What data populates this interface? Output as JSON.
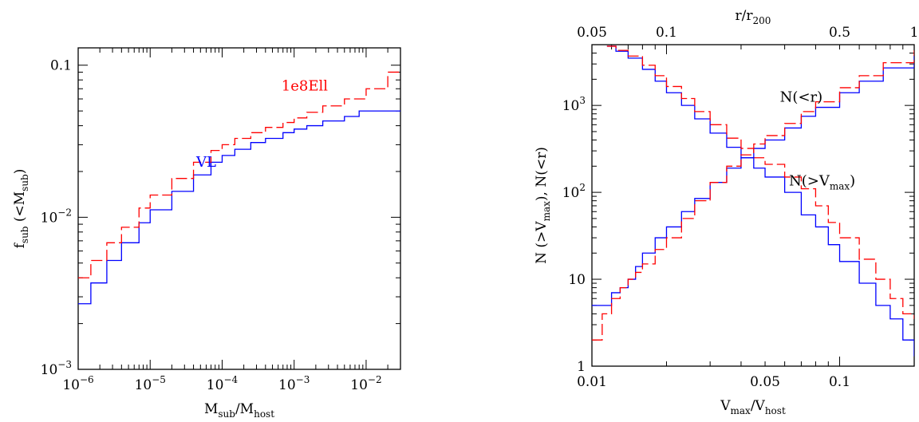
{
  "colors": {
    "vl": "#0000ff",
    "ell": "#ff0000",
    "frame": "#000000"
  },
  "chart_data": [
    {
      "type": "line",
      "xscale": "log",
      "yscale": "log",
      "xlim": [
        1e-06,
        0.03
      ],
      "ylim": [
        0.001,
        0.13
      ],
      "xlabel": {
        "main": "M",
        "sub1": "sub",
        "mid": "/M",
        "sub2": "host"
      },
      "ylabel": {
        "main": "f",
        "sub1": "sub",
        "mid": " (<M",
        "sub2": "sub",
        "end": ")"
      },
      "xticks": [
        {
          "value": 1e-06,
          "base": "10",
          "exp": "−6"
        },
        {
          "value": 1e-05,
          "base": "10",
          "exp": "−5"
        },
        {
          "value": 0.0001,
          "base": "10",
          "exp": "−4"
        },
        {
          "value": 0.001,
          "base": "10",
          "exp": "−3"
        },
        {
          "value": 0.01,
          "base": "10",
          "exp": "−2"
        }
      ],
      "yticks": [
        {
          "value": 0.001,
          "base": "10",
          "exp": "−3"
        },
        {
          "value": 0.01,
          "base": "10",
          "exp": "−2"
        },
        {
          "value": 0.1,
          "text": "0.1"
        }
      ],
      "series": [
        {
          "name": "VL",
          "style": "solid",
          "color": "#0000ff",
          "x": [
            1e-06,
            1.5e-06,
            2.5e-06,
            4e-06,
            7e-06,
            1e-05,
            2e-05,
            4e-05,
            7e-05,
            0.0001,
            0.00015,
            0.00025,
            0.0004,
            0.0007,
            0.001,
            0.0015,
            0.0025,
            0.005,
            0.008,
            0.03
          ],
          "y": [
            0.0027,
            0.0037,
            0.0052,
            0.0068,
            0.0092,
            0.0112,
            0.0148,
            0.019,
            0.023,
            0.0255,
            0.028,
            0.031,
            0.033,
            0.036,
            0.038,
            0.04,
            0.043,
            0.046,
            0.05,
            0.05
          ]
        },
        {
          "name": "1e8Ell",
          "style": "dashed",
          "color": "#ff0000",
          "x": [
            1e-06,
            1.5e-06,
            2.5e-06,
            4e-06,
            7e-06,
            1e-05,
            2e-05,
            4e-05,
            7e-05,
            0.0001,
            0.00015,
            0.00025,
            0.0004,
            0.0007,
            0.001,
            0.0015,
            0.0025,
            0.005,
            0.01,
            0.02,
            0.03
          ],
          "y": [
            0.004,
            0.0052,
            0.0068,
            0.0086,
            0.0115,
            0.014,
            0.018,
            0.023,
            0.0275,
            0.03,
            0.033,
            0.036,
            0.039,
            0.042,
            0.045,
            0.049,
            0.054,
            0.06,
            0.07,
            0.09,
            0.093
          ]
        }
      ],
      "annotations": [
        {
          "text": "1e8Ell",
          "x": 0.0014,
          "y": 0.068,
          "color": "#ff0000"
        },
        {
          "text": "VL",
          "x": 6e-05,
          "y": 0.0215,
          "color": "#0000ff"
        }
      ]
    },
    {
      "type": "line",
      "xscale": "log",
      "yscale": "log",
      "xlim": [
        0.01,
        0.2
      ],
      "ylim": [
        1,
        5000
      ],
      "top_xlim": [
        0.05,
        1
      ],
      "xlabel": {
        "main": "V",
        "sub1": "max",
        "mid": "/V",
        "sub2": "host"
      },
      "top_xlabel": {
        "main": "r/r",
        "sub1": "200"
      },
      "ylabel": {
        "a": "N (>V",
        "sub1": "max",
        "b": "), N(<r)"
      },
      "xticks": [
        {
          "value": 0.01,
          "text": "0.01"
        },
        {
          "value": 0.05,
          "text": "0.05"
        },
        {
          "value": 0.1,
          "text": "0.1"
        }
      ],
      "top_xticks": [
        {
          "value": 0.05,
          "text": "0.05"
        },
        {
          "value": 0.1,
          "text": "0.1"
        },
        {
          "value": 0.5,
          "text": "0.5"
        },
        {
          "value": 1,
          "text": "1"
        }
      ],
      "yticks": [
        {
          "value": 1,
          "text": "1"
        },
        {
          "value": 10,
          "text": "10"
        },
        {
          "value": 100,
          "base": "10",
          "exp": "2"
        },
        {
          "value": 1000,
          "base": "10",
          "exp": "3"
        }
      ],
      "series": [
        {
          "name": "N(>Vmax)",
          "style": "solid",
          "color": "#0000ff",
          "x": [
            0.0115,
            0.0125,
            0.014,
            0.016,
            0.018,
            0.02,
            0.023,
            0.026,
            0.03,
            0.035,
            0.04,
            0.045,
            0.05,
            0.06,
            0.07,
            0.08,
            0.09,
            0.1,
            0.12,
            0.14,
            0.16,
            0.18,
            0.2
          ],
          "y": [
            4800,
            4200,
            3500,
            2600,
            1900,
            1400,
            1000,
            700,
            480,
            330,
            250,
            190,
            150,
            100,
            55,
            40,
            25,
            16,
            9,
            5,
            3.5,
            2,
            1.3
          ]
        },
        {
          "name": "N(>Vmax)",
          "style": "dashed",
          "color": "#ff0000",
          "x": [
            0.0115,
            0.0125,
            0.014,
            0.016,
            0.018,
            0.02,
            0.023,
            0.026,
            0.03,
            0.035,
            0.04,
            0.045,
            0.05,
            0.06,
            0.07,
            0.08,
            0.09,
            0.1,
            0.12,
            0.14,
            0.16,
            0.18,
            0.2
          ],
          "y": [
            4800,
            4300,
            3700,
            2900,
            2200,
            1650,
            1200,
            850,
            600,
            420,
            320,
            250,
            210,
            150,
            110,
            70,
            45,
            30,
            17,
            10,
            6,
            4,
            3.5
          ]
        },
        {
          "name": "N(<r)",
          "style": "solid",
          "color": "#0000ff",
          "x": [
            0.01,
            0.011,
            0.012,
            0.013,
            0.014,
            0.015,
            0.016,
            0.018,
            0.02,
            0.023,
            0.026,
            0.03,
            0.035,
            0.04,
            0.045,
            0.05,
            0.06,
            0.07,
            0.08,
            0.1,
            0.12,
            0.15,
            0.2
          ],
          "y": [
            5,
            5,
            7,
            8,
            10,
            14,
            20,
            30,
            40,
            60,
            85,
            130,
            190,
            250,
            320,
            400,
            550,
            750,
            950,
            1400,
            1900,
            2700,
            3800
          ]
        },
        {
          "name": "N(<r)",
          "style": "dashed",
          "color": "#ff0000",
          "x": [
            0.01,
            0.011,
            0.012,
            0.013,
            0.014,
            0.015,
            0.016,
            0.018,
            0.02,
            0.023,
            0.026,
            0.03,
            0.035,
            0.04,
            0.045,
            0.05,
            0.06,
            0.07,
            0.08,
            0.1,
            0.12,
            0.15,
            0.2
          ],
          "y": [
            2,
            4,
            6,
            8,
            10,
            12,
            15,
            22,
            30,
            50,
            80,
            130,
            200,
            270,
            360,
            450,
            620,
            850,
            1100,
            1600,
            2200,
            3100,
            4300
          ]
        }
      ],
      "annotations": [
        {
          "text": "N(<r)",
          "x": 0.07,
          "y": 1100
        },
        {
          "text": "N(>V",
          "sub": "max",
          "end": ")",
          "x": 0.085,
          "y": 120
        }
      ]
    }
  ]
}
